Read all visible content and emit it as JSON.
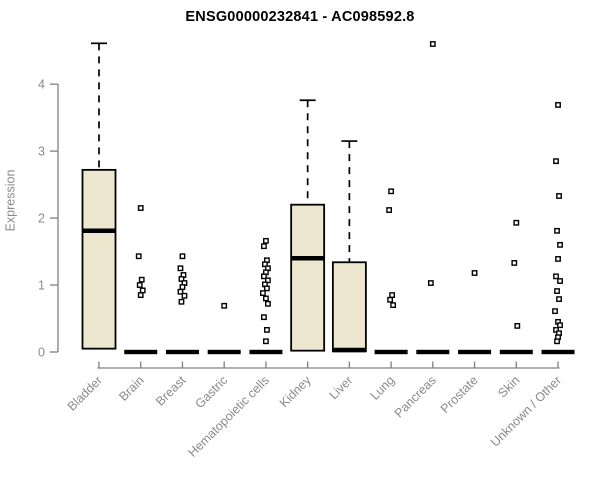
{
  "chart_data": {
    "type": "boxplot",
    "title": "ENSG00000232841 - AC098592.8",
    "xlabel": "",
    "ylabel": "Expression",
    "yticks": [
      0,
      1,
      2,
      3,
      4
    ],
    "ylim": [
      0,
      4.8
    ],
    "grid": false,
    "legend": null,
    "colors": {
      "box_fill": "#ECE7CE",
      "box_stroke": "#000000",
      "outlier_stroke": "#000000",
      "axis_line": "#808080",
      "axis_text": "#8a8a8a",
      "title_text": "#000000",
      "background": "#ffffff"
    },
    "categories": [
      "Bladder",
      "Brain",
      "Breast",
      "Gastric",
      "Hematopoietic cells",
      "Kidney",
      "Liver",
      "Lung",
      "Pancreas",
      "Prostate",
      "Skin",
      "Unknown / Other"
    ],
    "boxes": [
      {
        "category": "Bladder",
        "kind": "box",
        "q1": 0.05,
        "median": 1.81,
        "q3": 2.72,
        "whisker_high": 4.61,
        "outliers": []
      },
      {
        "category": "Brain",
        "kind": "flat",
        "median": 0,
        "outliers": [
          2.15,
          1.43,
          1.08,
          1.0,
          0.92,
          0.85
        ]
      },
      {
        "category": "Breast",
        "kind": "flat",
        "median": 0,
        "outliers": [
          1.43,
          1.25,
          1.15,
          1.09,
          1.03,
          0.97,
          0.9,
          0.84,
          0.75
        ]
      },
      {
        "category": "Gastric",
        "kind": "flat",
        "median": 0,
        "outliers": [
          0.69
        ]
      },
      {
        "category": "Hematopoietic cells",
        "kind": "flat",
        "median": 0,
        "outliers": [
          1.66,
          1.58,
          1.37,
          1.31,
          1.25,
          1.19,
          1.13,
          1.07,
          1.01,
          0.95,
          0.88,
          0.8,
          0.72,
          0.52,
          0.33,
          0.16
        ]
      },
      {
        "category": "Kidney",
        "kind": "box",
        "q1": 0.02,
        "median": 1.4,
        "q3": 2.2,
        "whisker_high": 3.76,
        "outliers": []
      },
      {
        "category": "Liver",
        "kind": "box",
        "q1": 0.01,
        "median": 0.03,
        "q3": 1.34,
        "whisker_high": 3.15,
        "outliers": []
      },
      {
        "category": "Lung",
        "kind": "flat",
        "median": 0,
        "outliers": [
          2.4,
          2.12,
          0.85,
          0.78,
          0.7
        ]
      },
      {
        "category": "Pancreas",
        "kind": "flat",
        "median": 0,
        "outliers": [
          4.6,
          1.03
        ]
      },
      {
        "category": "Prostate",
        "kind": "flat",
        "median": 0,
        "outliers": [
          1.18
        ]
      },
      {
        "category": "Skin",
        "kind": "flat",
        "median": 0,
        "outliers": [
          1.93,
          1.33,
          0.39
        ]
      },
      {
        "category": "Unknown / Other",
        "kind": "flat",
        "median": 0,
        "outliers": [
          3.69,
          2.85,
          2.33,
          1.81,
          1.6,
          1.39,
          1.13,
          1.06,
          0.91,
          0.79,
          0.61,
          0.45,
          0.4,
          0.33,
          0.28,
          0.22,
          0.16
        ]
      }
    ]
  }
}
